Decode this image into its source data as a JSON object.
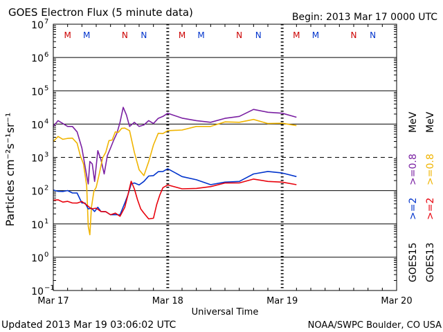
{
  "header": {
    "title": "GOES Electron Flux (5 minute data)",
    "begin": "Begin: 2013 Mar 17 0000 UTC"
  },
  "footer": {
    "updated": "Updated 2013 Mar 19 03:06:02 UTC",
    "credit": "NOAA/SWPC Boulder, CO USA"
  },
  "colors": {
    "goes15_low": "#0033cc",
    "goes15_high": "#7a1fa2",
    "goes13_low": "#e8000b",
    "goes13_high": "#f0b400",
    "marker_m_red": "#cc0000",
    "marker_m_blue": "#0033cc"
  },
  "chart_data": {
    "type": "line",
    "title": "GOES Electron Flux (5 minute data)",
    "xlabel": "Universal Time",
    "ylabel": "Particles cm⁻²s⁻¹sr⁻¹",
    "yscale": "log",
    "xlim": [
      "2013-03-17T00:00",
      "2013-03-20T00:00"
    ],
    "ylim": [
      0.1,
      10000000
    ],
    "x_ticks": [
      "Mar 17",
      "Mar 18",
      "Mar 19",
      "Mar 20"
    ],
    "y_ticks": [
      {
        "base": "10",
        "exp": "7",
        "value": 10000000
      },
      {
        "base": "10",
        "exp": "6",
        "value": 1000000
      },
      {
        "base": "10",
        "exp": "5",
        "value": 100000
      },
      {
        "base": "10",
        "exp": "4",
        "value": 10000
      },
      {
        "base": "10",
        "exp": "3",
        "value": 1000
      },
      {
        "base": "10",
        "exp": "2",
        "value": 100
      },
      {
        "base": "10",
        "exp": "1",
        "value": 10
      },
      {
        "base": "10",
        "exp": "0",
        "value": 1
      },
      {
        "base": "10",
        "exp": "−1",
        "value": 0.1
      }
    ],
    "threshold_dashed": 1000,
    "legend": {
      "placement": "right",
      "goes15": {
        "label": "GOES15",
        "low": ">=2",
        "high": ">=0.8",
        "unit": "MeV"
      },
      "goes13": {
        "label": "GOES13",
        "low": ">=2",
        "high": ">=0.8",
        "unit": "MeV"
      }
    },
    "markers": [
      {
        "label": "M",
        "x": "2013-03-17T03:00",
        "color": "#cc0000"
      },
      {
        "label": "M",
        "x": "2013-03-17T07:00",
        "color": "#0033cc"
      },
      {
        "label": "N",
        "x": "2013-03-17T15:00",
        "color": "#cc0000"
      },
      {
        "label": "N",
        "x": "2013-03-17T19:00",
        "color": "#0033cc"
      },
      {
        "label": "M",
        "x": "2013-03-18T03:00",
        "color": "#cc0000"
      },
      {
        "label": "M",
        "x": "2013-03-18T07:00",
        "color": "#0033cc"
      },
      {
        "label": "N",
        "x": "2013-03-18T15:00",
        "color": "#cc0000"
      },
      {
        "label": "N",
        "x": "2013-03-18T19:00",
        "color": "#0033cc"
      },
      {
        "label": "M",
        "x": "2013-03-19T03:00",
        "color": "#cc0000"
      },
      {
        "label": "M",
        "x": "2013-03-19T07:00",
        "color": "#0033cc"
      },
      {
        "label": "N",
        "x": "2013-03-19T15:00",
        "color": "#cc0000"
      },
      {
        "label": "N",
        "x": "2013-03-19T19:00",
        "color": "#0033cc"
      }
    ],
    "series": [
      {
        "id": "goes15_high",
        "color": "#7a1fa2",
        "x": [
          "2013-03-17T00:00",
          "2013-03-17T01:00",
          "2013-03-17T02:00",
          "2013-03-17T03:00",
          "2013-03-17T04:00",
          "2013-03-17T05:00",
          "2013-03-17T05:30",
          "2013-03-17T06:00",
          "2013-03-17T07:00",
          "2013-03-17T07:20",
          "2013-03-17T07:40",
          "2013-03-17T08:10",
          "2013-03-17T08:40",
          "2013-03-17T09:20",
          "2013-03-17T10:00",
          "2013-03-17T10:40",
          "2013-03-17T11:20",
          "2013-03-17T12:00",
          "2013-03-17T12:40",
          "2013-03-17T13:20",
          "2013-03-17T14:00",
          "2013-03-17T14:40",
          "2013-03-17T15:20",
          "2013-03-17T16:00",
          "2013-03-17T17:00",
          "2013-03-17T18:00",
          "2013-03-17T19:00",
          "2013-03-17T20:00",
          "2013-03-17T21:00",
          "2013-03-17T22:00",
          "2013-03-17T23:00",
          "2013-03-18T00:00",
          "2013-03-18T03:00",
          "2013-03-18T06:00",
          "2013-03-18T09:00",
          "2013-03-18T12:00",
          "2013-03-18T15:00",
          "2013-03-18T18:00",
          "2013-03-18T21:00",
          "2013-03-19T00:00",
          "2013-03-19T03:00"
        ],
        "y": [
          9000,
          12000,
          11000,
          8000,
          9000,
          5500,
          3500,
          1800,
          300,
          150,
          800,
          600,
          200,
          1500,
          900,
          300,
          1200,
          1800,
          3500,
          5000,
          12000,
          30000,
          20000,
          8000,
          12000,
          8000,
          10000,
          12000,
          11000,
          14000,
          18000,
          20000,
          16000,
          12000,
          12000,
          14000,
          18000,
          26000,
          24000,
          20000,
          17000
        ]
      },
      {
        "id": "goes13_high",
        "color": "#f0b400",
        "x": [
          "2013-03-17T00:00",
          "2013-03-17T01:00",
          "2013-03-17T02:00",
          "2013-03-17T03:00",
          "2013-03-17T04:00",
          "2013-03-17T05:00",
          "2013-03-17T05:40",
          "2013-03-17T06:20",
          "2013-03-17T07:00",
          "2013-03-17T07:20",
          "2013-03-17T07:40",
          "2013-03-17T08:00",
          "2013-03-17T08:30",
          "2013-03-17T09:00",
          "2013-03-17T09:40",
          "2013-03-17T10:20",
          "2013-03-17T11:00",
          "2013-03-17T11:40",
          "2013-03-17T12:20",
          "2013-03-17T13:00",
          "2013-03-17T13:40",
          "2013-03-17T14:20",
          "2013-03-17T15:00",
          "2013-03-17T16:00",
          "2013-03-17T17:00",
          "2013-03-17T18:00",
          "2013-03-17T19:00",
          "2013-03-17T20:00",
          "2013-03-17T21:00",
          "2013-03-17T22:00",
          "2013-03-17T23:00",
          "2013-03-18T00:00",
          "2013-03-18T03:00",
          "2013-03-18T06:00",
          "2013-03-18T09:00",
          "2013-03-18T12:00",
          "2013-03-18T15:00",
          "2013-03-18T18:00",
          "2013-03-18T21:00",
          "2013-03-19T00:00",
          "2013-03-19T03:00"
        ],
        "y": [
          3200,
          4000,
          3700,
          3500,
          4000,
          2500,
          1200,
          600,
          150,
          8,
          5,
          30,
          100,
          120,
          350,
          900,
          1500,
          3000,
          3500,
          5500,
          6000,
          7000,
          8000,
          6000,
          1500,
          400,
          300,
          700,
          2500,
          5000,
          5500,
          6000,
          7000,
          8000,
          9000,
          11000,
          12000,
          13000,
          11000,
          10000,
          9500
        ]
      },
      {
        "id": "goes15_low",
        "color": "#0033cc",
        "x": [
          "2013-03-17T00:00",
          "2013-03-17T01:00",
          "2013-03-17T02:00",
          "2013-03-17T03:00",
          "2013-03-17T04:00",
          "2013-03-17T05:00",
          "2013-03-17T06:00",
          "2013-03-17T06:40",
          "2013-03-17T07:20",
          "2013-03-17T08:00",
          "2013-03-17T08:40",
          "2013-03-17T09:20",
          "2013-03-17T10:00",
          "2013-03-17T11:00",
          "2013-03-17T12:00",
          "2013-03-17T13:00",
          "2013-03-17T14:00",
          "2013-03-17T15:00",
          "2013-03-17T15:40",
          "2013-03-17T16:20",
          "2013-03-17T17:00",
          "2013-03-17T18:00",
          "2013-03-17T19:00",
          "2013-03-17T20:00",
          "2013-03-17T21:00",
          "2013-03-17T22:00",
          "2013-03-17T23:00",
          "2013-03-18T00:00",
          "2013-03-18T03:00",
          "2013-03-18T06:00",
          "2013-03-18T09:00",
          "2013-03-18T12:00",
          "2013-03-18T15:00",
          "2013-03-18T18:00",
          "2013-03-18T21:00",
          "2013-03-19T00:00",
          "2013-03-19T03:00"
        ],
        "y": [
          110,
          90,
          100,
          95,
          90,
          80,
          45,
          40,
          30,
          28,
          25,
          30,
          25,
          22,
          20,
          18,
          20,
          40,
          80,
          150,
          180,
          140,
          200,
          260,
          300,
          350,
          400,
          430,
          280,
          200,
          160,
          170,
          200,
          300,
          400,
          320,
          280
        ]
      },
      {
        "id": "goes13_low",
        "color": "#e8000b",
        "x": [
          "2013-03-17T00:00",
          "2013-03-17T01:00",
          "2013-03-17T02:00",
          "2013-03-17T03:00",
          "2013-03-17T04:00",
          "2013-03-17T05:00",
          "2013-03-17T06:00",
          "2013-03-17T07:00",
          "2013-03-17T08:00",
          "2013-03-17T09:00",
          "2013-03-17T10:00",
          "2013-03-17T11:00",
          "2013-03-17T12:00",
          "2013-03-17T13:00",
          "2013-03-17T14:00",
          "2013-03-17T15:00",
          "2013-03-17T15:40",
          "2013-03-17T16:20",
          "2013-03-17T17:00",
          "2013-03-17T17:40",
          "2013-03-17T18:20",
          "2013-03-17T19:00",
          "2013-03-17T20:00",
          "2013-03-17T21:00",
          "2013-03-17T21:40",
          "2013-03-17T22:20",
          "2013-03-17T23:00",
          "2013-03-18T00:00",
          "2013-03-18T03:00",
          "2013-03-18T06:00",
          "2013-03-18T09:00",
          "2013-03-18T12:00",
          "2013-03-18T15:00",
          "2013-03-18T18:00",
          "2013-03-18T21:00",
          "2013-03-19T00:00",
          "2013-03-19T03:00"
        ],
        "y": [
          55,
          50,
          48,
          45,
          45,
          40,
          50,
          35,
          30,
          28,
          25,
          22,
          20,
          20,
          18,
          30,
          80,
          180,
          120,
          50,
          30,
          20,
          15,
          14,
          40,
          70,
          130,
          140,
          120,
          110,
          140,
          160,
          180,
          210,
          200,
          170,
          160
        ]
      }
    ]
  }
}
